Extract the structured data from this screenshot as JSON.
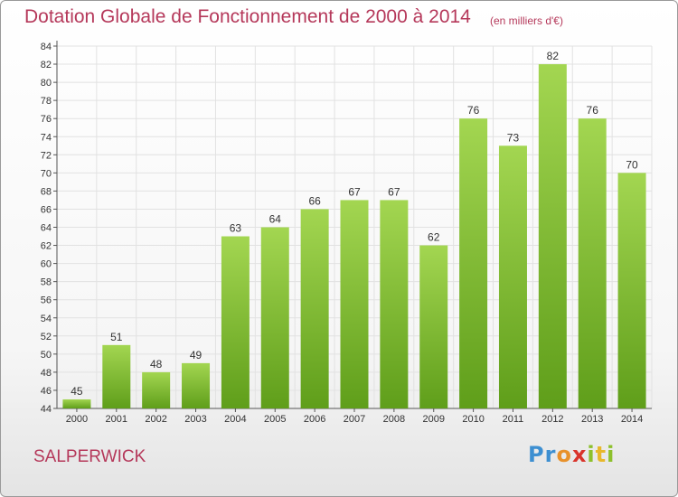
{
  "header": {
    "title": "Dotation Globale de Fonctionnement de 2000 à 2014",
    "subtitle": "(en milliers d'€)"
  },
  "footer": {
    "commune": "SALPERWICK",
    "logo_text": "Proxiti"
  },
  "colors": {
    "title": "#b5385a",
    "bar_top": "#a3d651",
    "bar_bottom": "#5f9e1a",
    "grid": "#e2e2e2"
  },
  "chart_data": {
    "type": "bar",
    "title": "Dotation Globale de Fonctionnement de 2000 à 2014",
    "subtitle": "(en milliers d'€)",
    "xlabel": "",
    "ylabel": "",
    "categories": [
      "2000",
      "2001",
      "2002",
      "2003",
      "2004",
      "2005",
      "2006",
      "2007",
      "2008",
      "2009",
      "2010",
      "2011",
      "2012",
      "2013",
      "2014"
    ],
    "values": [
      45,
      51,
      48,
      49,
      63,
      64,
      66,
      67,
      67,
      62,
      76,
      73,
      82,
      76,
      70
    ],
    "ylim": [
      44,
      84
    ],
    "yticks": [
      44,
      46,
      48,
      50,
      52,
      54,
      56,
      58,
      60,
      62,
      64,
      66,
      68,
      70,
      72,
      74,
      76,
      78,
      80,
      82,
      84
    ],
    "grid": true,
    "legend": "none"
  }
}
